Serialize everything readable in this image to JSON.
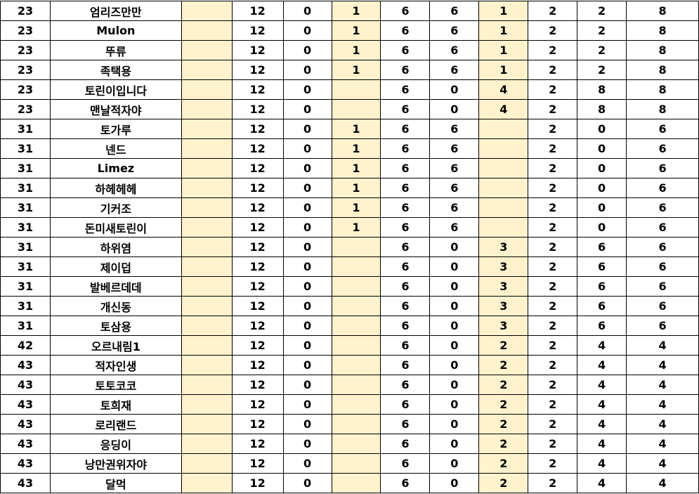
{
  "colors": {
    "highlight": "#FFF2CC",
    "grid": "#000000"
  },
  "rows": [
    [
      "23",
      "엄리즈만만",
      "",
      "12",
      "0",
      "1",
      "6",
      "6",
      "1",
      "2",
      "2",
      "8"
    ],
    [
      "23",
      "Mulon",
      "",
      "12",
      "0",
      "1",
      "6",
      "6",
      "1",
      "2",
      "2",
      "8"
    ],
    [
      "23",
      "뚜류",
      "",
      "12",
      "0",
      "1",
      "6",
      "6",
      "1",
      "2",
      "2",
      "8"
    ],
    [
      "23",
      "족택용",
      "",
      "12",
      "0",
      "1",
      "6",
      "6",
      "1",
      "2",
      "2",
      "8"
    ],
    [
      "23",
      "토린이입니다",
      "",
      "12",
      "0",
      "",
      "6",
      "0",
      "4",
      "2",
      "8",
      "8"
    ],
    [
      "23",
      "맨날적자야",
      "",
      "12",
      "0",
      "",
      "6",
      "0",
      "4",
      "2",
      "8",
      "8"
    ],
    [
      "31",
      "토가루",
      "",
      "12",
      "0",
      "1",
      "6",
      "6",
      "",
      "2",
      "0",
      "6"
    ],
    [
      "31",
      "넨드",
      "",
      "12",
      "0",
      "1",
      "6",
      "6",
      "",
      "2",
      "0",
      "6"
    ],
    [
      "31",
      "Limez",
      "",
      "12",
      "0",
      "1",
      "6",
      "6",
      "",
      "2",
      "0",
      "6"
    ],
    [
      "31",
      "하헤헤헤",
      "",
      "12",
      "0",
      "1",
      "6",
      "6",
      "",
      "2",
      "0",
      "6"
    ],
    [
      "31",
      "기커조",
      "",
      "12",
      "0",
      "1",
      "6",
      "6",
      "",
      "2",
      "0",
      "6"
    ],
    [
      "31",
      "돈미새토린이",
      "",
      "12",
      "0",
      "1",
      "6",
      "6",
      "",
      "2",
      "0",
      "6"
    ],
    [
      "31",
      "하위염",
      "",
      "12",
      "0",
      "",
      "6",
      "0",
      "3",
      "2",
      "6",
      "6"
    ],
    [
      "31",
      "제이덥",
      "",
      "12",
      "0",
      "",
      "6",
      "0",
      "3",
      "2",
      "6",
      "6"
    ],
    [
      "31",
      "발베르데데",
      "",
      "12",
      "0",
      "",
      "6",
      "0",
      "3",
      "2",
      "6",
      "6"
    ],
    [
      "31",
      "개신동",
      "",
      "12",
      "0",
      "",
      "6",
      "0",
      "3",
      "2",
      "6",
      "6"
    ],
    [
      "31",
      "토삼용",
      "",
      "12",
      "0",
      "",
      "6",
      "0",
      "3",
      "2",
      "6",
      "6"
    ],
    [
      "42",
      "오르내림1",
      "",
      "12",
      "0",
      "",
      "6",
      "0",
      "2",
      "2",
      "4",
      "4"
    ],
    [
      "43",
      "적자인생",
      "",
      "12",
      "0",
      "",
      "6",
      "0",
      "2",
      "2",
      "4",
      "4"
    ],
    [
      "43",
      "토토코코",
      "",
      "12",
      "0",
      "",
      "6",
      "0",
      "2",
      "2",
      "4",
      "4"
    ],
    [
      "43",
      "토희재",
      "",
      "12",
      "0",
      "",
      "6",
      "0",
      "2",
      "2",
      "4",
      "4"
    ],
    [
      "43",
      "로리랜드",
      "",
      "12",
      "0",
      "",
      "6",
      "0",
      "2",
      "2",
      "4",
      "4"
    ],
    [
      "43",
      "응딩이",
      "",
      "12",
      "0",
      "",
      "6",
      "0",
      "2",
      "2",
      "4",
      "4"
    ],
    [
      "43",
      "낭만권위자야",
      "",
      "12",
      "0",
      "",
      "6",
      "0",
      "2",
      "2",
      "4",
      "4"
    ],
    [
      "43",
      "달먹",
      "",
      "12",
      "0",
      "",
      "6",
      "0",
      "2",
      "2",
      "4",
      "4"
    ]
  ]
}
